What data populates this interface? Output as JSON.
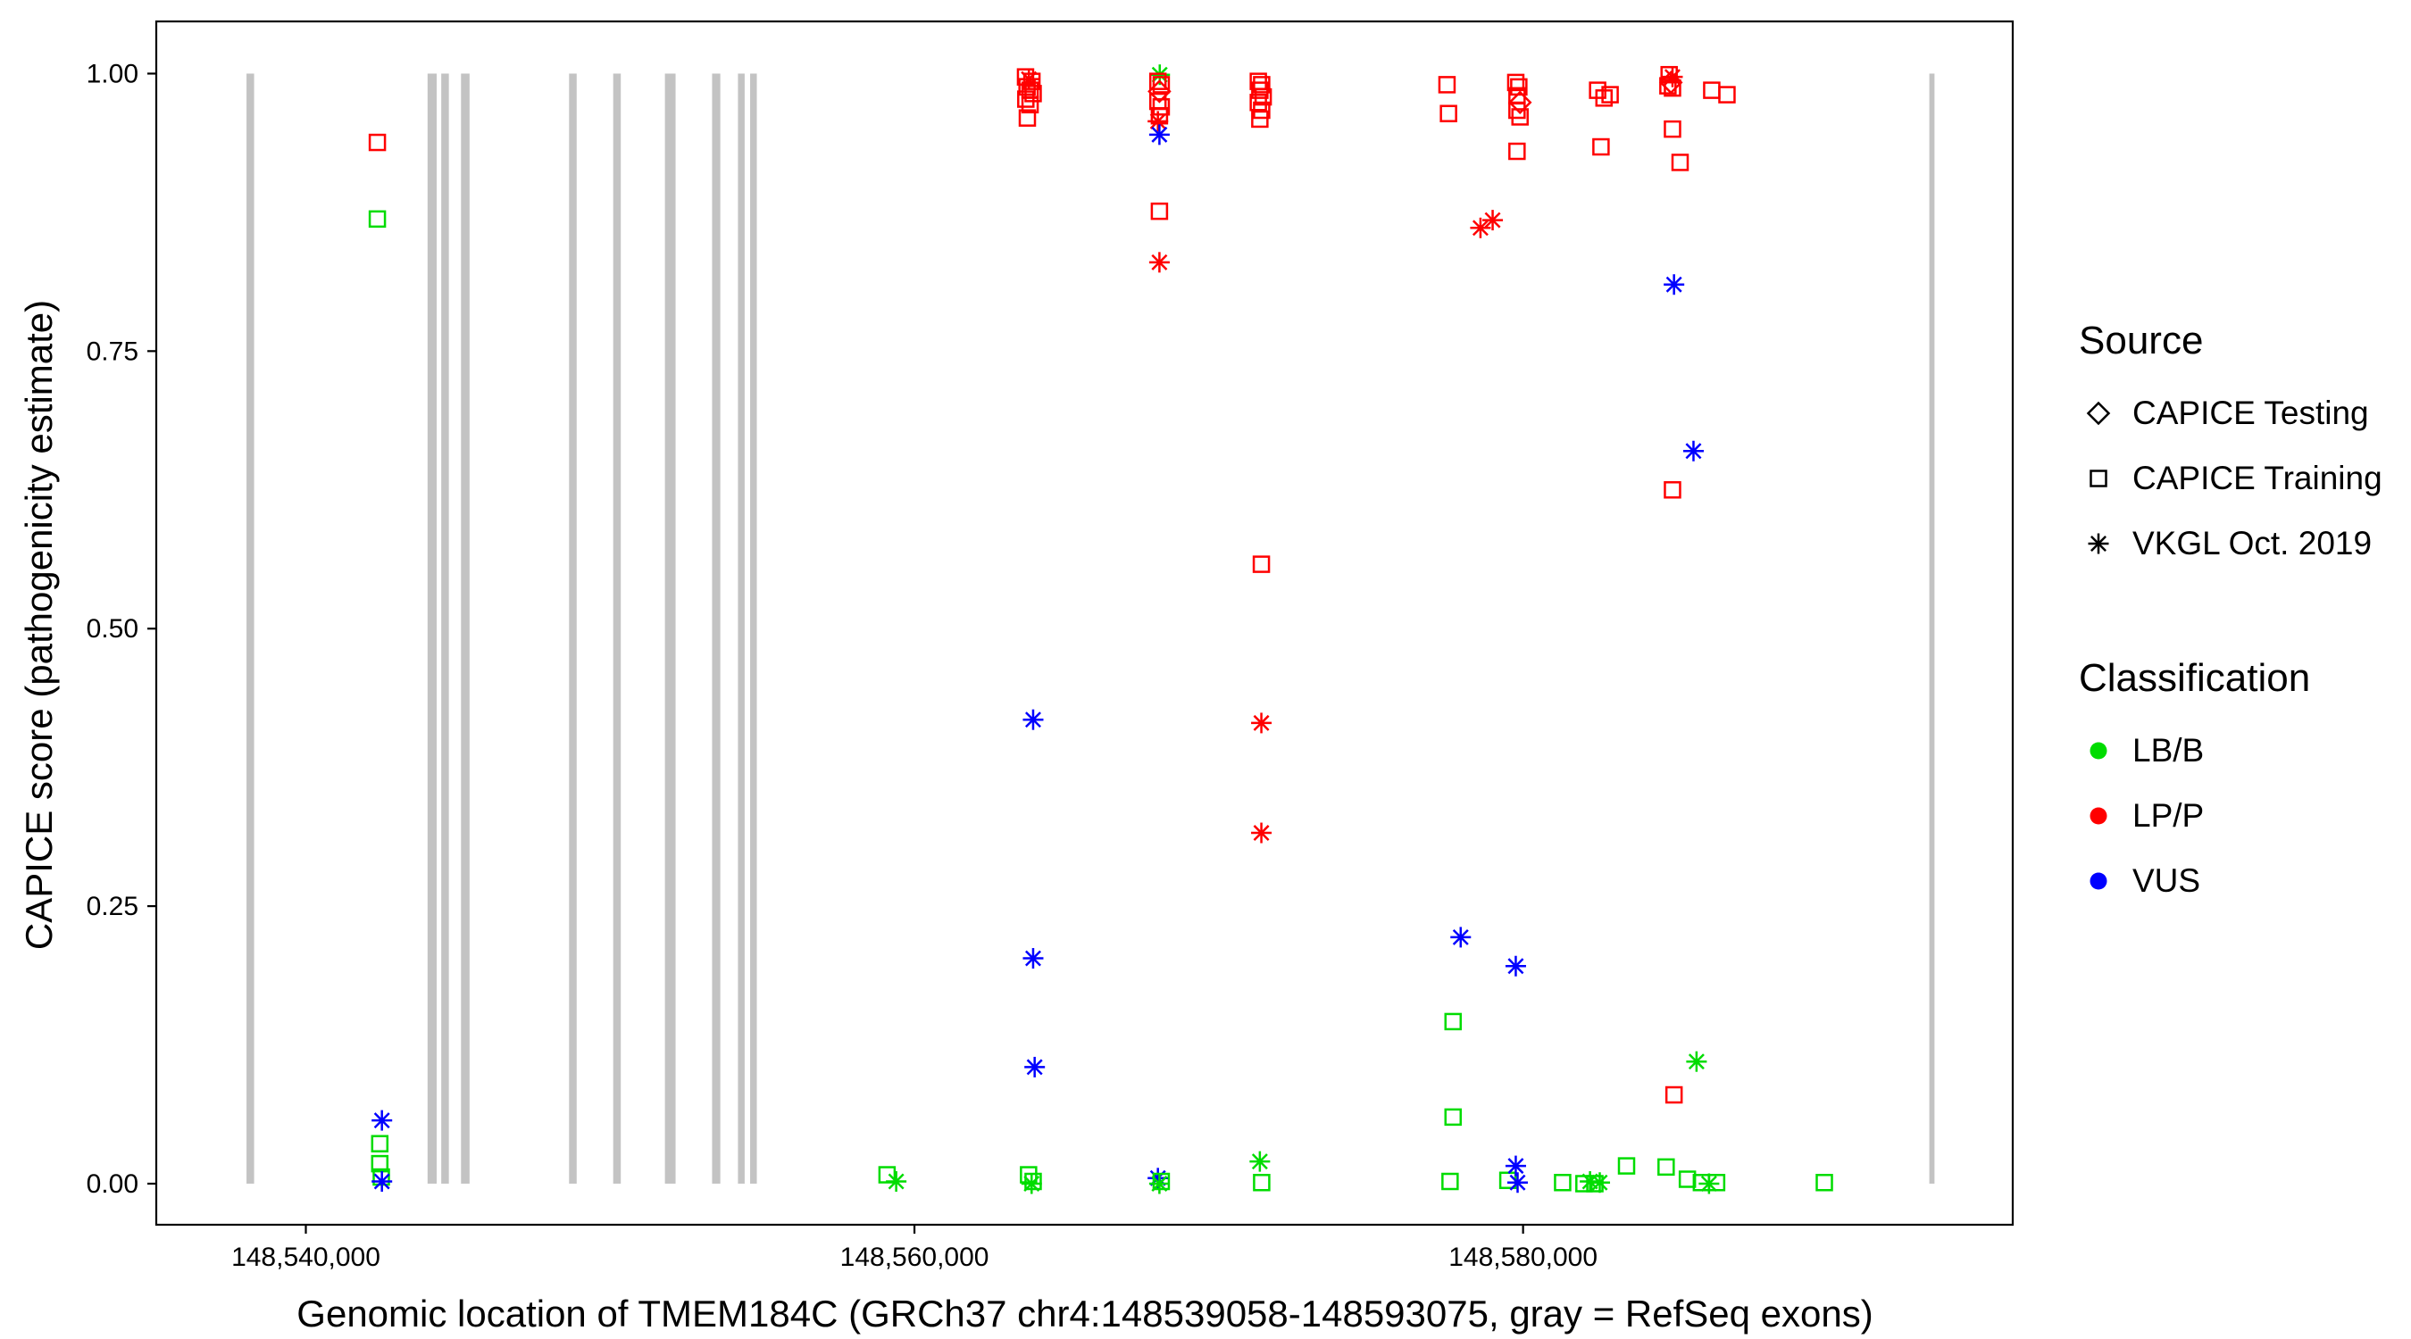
{
  "legend": {
    "source": {
      "title": "Source",
      "items": [
        {
          "label": "CAPICE Testing",
          "shape": "diamond"
        },
        {
          "label": "CAPICE Training",
          "shape": "square"
        },
        {
          "label": "VKGL Oct. 2019",
          "shape": "asterisk"
        }
      ]
    },
    "classification": {
      "title": "Classification",
      "items": [
        {
          "label": "LB/B",
          "class": "LB/B"
        },
        {
          "label": "LP/P",
          "class": "LP/P"
        },
        {
          "label": "VUS",
          "class": "VUS"
        }
      ]
    }
  },
  "chart_data": {
    "type": "scatter",
    "title": "",
    "xlabel": "Genomic location of TMEM184C (GRCh37 chr4:148539058-148593075, gray = RefSeq exons)",
    "ylabel": "CAPICE score (pathogenicity estimate)",
    "x_domain": [
      148535085,
      148596091
    ],
    "y_domain": [
      0,
      1
    ],
    "y_domain_expanded": [
      -0.037,
      1.047
    ],
    "grid": false,
    "x_ticks": [
      {
        "value": 148540000,
        "label": "148,540,000"
      },
      {
        "value": 148560000,
        "label": "148,560,000"
      },
      {
        "value": 148580000,
        "label": "148,580,000"
      }
    ],
    "y_ticks": [
      {
        "value": 0.0,
        "label": "0.00"
      },
      {
        "value": 0.25,
        "label": "0.25"
      },
      {
        "value": 0.5,
        "label": "0.50"
      },
      {
        "value": 0.75,
        "label": "0.75"
      },
      {
        "value": 1.0,
        "label": "1.00"
      }
    ],
    "colors": {
      "LB/B": "#00DC00",
      "LP/P": "#FF0000",
      "VUS": "#0000FF"
    },
    "exon_color": "#C3C3C3",
    "shape_meaning": {
      "diamond": "CAPICE Testing",
      "square": "CAPICE Training",
      "asterisk": "VKGL Oct. 2019"
    },
    "exons": [
      [
        148538050,
        148538300
      ],
      [
        148544000,
        148544300
      ],
      [
        148544450,
        148544700
      ],
      [
        148545100,
        148545380
      ],
      [
        148548650,
        148548900
      ],
      [
        148550100,
        148550350
      ],
      [
        148551800,
        148552150
      ],
      [
        148553350,
        148553620
      ],
      [
        148554200,
        148554420
      ],
      [
        148554600,
        148554820
      ],
      [
        148593350,
        148593520
      ]
    ],
    "point_format": [
      "genomic_position",
      "capice_score",
      "source_shape",
      "classification"
    ],
    "points": [
      [
        148542350,
        0.938,
        "square",
        "LP/P"
      ],
      [
        148542350,
        0.869,
        "square",
        "LB/B"
      ],
      [
        148542500,
        0.057,
        "asterisk",
        "VUS"
      ],
      [
        148542430,
        0.036,
        "square",
        "LB/B"
      ],
      [
        148542430,
        0.018,
        "square",
        "LB/B"
      ],
      [
        148542480,
        0.006,
        "square",
        "LB/B"
      ],
      [
        148542500,
        0.002,
        "asterisk",
        "VUS"
      ],
      [
        148559100,
        0.008,
        "square",
        "LB/B"
      ],
      [
        148559400,
        0.002,
        "asterisk",
        "LB/B"
      ],
      [
        148563650,
        0.997,
        "square",
        "LP/P"
      ],
      [
        148563760,
        0.995,
        "asterisk",
        "LP/P"
      ],
      [
        148563860,
        0.993,
        "square",
        "LP/P"
      ],
      [
        148563700,
        0.988,
        "square",
        "LP/P"
      ],
      [
        148563800,
        0.985,
        "square",
        "LP/P"
      ],
      [
        148563900,
        0.982,
        "square",
        "LP/P"
      ],
      [
        148563660,
        0.977,
        "square",
        "LP/P"
      ],
      [
        148563800,
        0.972,
        "square",
        "LP/P"
      ],
      [
        148563710,
        0.96,
        "square",
        "LP/P"
      ],
      [
        148563900,
        0.418,
        "asterisk",
        "VUS"
      ],
      [
        148563900,
        0.203,
        "asterisk",
        "VUS"
      ],
      [
        148563950,
        0.105,
        "asterisk",
        "VUS"
      ],
      [
        148563750,
        0.008,
        "square",
        "LB/B"
      ],
      [
        148563900,
        0.002,
        "square",
        "LB/B"
      ],
      [
        148563850,
        0.0,
        "asterisk",
        "LB/B"
      ],
      [
        148568060,
        0.999,
        "asterisk",
        "LB/B"
      ],
      [
        148568000,
        0.993,
        "square",
        "LP/P"
      ],
      [
        148568110,
        0.99,
        "square",
        "LP/P"
      ],
      [
        148568050,
        0.984,
        "diamond",
        "LP/P"
      ],
      [
        148568000,
        0.975,
        "square",
        "LP/P"
      ],
      [
        148568110,
        0.97,
        "square",
        "LP/P"
      ],
      [
        148568050,
        0.962,
        "square",
        "LP/P"
      ],
      [
        148568000,
        0.957,
        "asterisk",
        "LP/P"
      ],
      [
        148568050,
        0.945,
        "asterisk",
        "VUS"
      ],
      [
        148568050,
        0.876,
        "square",
        "LP/P"
      ],
      [
        148568050,
        0.83,
        "asterisk",
        "LP/P"
      ],
      [
        148568000,
        0.005,
        "asterisk",
        "VUS"
      ],
      [
        148568110,
        0.002,
        "square",
        "LB/B"
      ],
      [
        148568050,
        0.0,
        "asterisk",
        "LB/B"
      ],
      [
        148571300,
        0.993,
        "square",
        "LP/P"
      ],
      [
        148571410,
        0.99,
        "square",
        "LP/P"
      ],
      [
        148571350,
        0.985,
        "square",
        "LP/P"
      ],
      [
        148571460,
        0.979,
        "square",
        "LP/P"
      ],
      [
        148571300,
        0.974,
        "square",
        "LP/P"
      ],
      [
        148571410,
        0.967,
        "square",
        "LP/P"
      ],
      [
        148571350,
        0.959,
        "square",
        "LP/P"
      ],
      [
        148571400,
        0.558,
        "square",
        "LP/P"
      ],
      [
        148571400,
        0.415,
        "asterisk",
        "LP/P"
      ],
      [
        148571400,
        0.316,
        "asterisk",
        "LP/P"
      ],
      [
        148571350,
        0.02,
        "asterisk",
        "LB/B"
      ],
      [
        148571410,
        0.001,
        "square",
        "LB/B"
      ],
      [
        148577500,
        0.99,
        "square",
        "LP/P"
      ],
      [
        148577550,
        0.964,
        "square",
        "LP/P"
      ],
      [
        148578600,
        0.861,
        "asterisk",
        "LP/P"
      ],
      [
        148579000,
        0.868,
        "asterisk",
        "LP/P"
      ],
      [
        148579760,
        0.992,
        "square",
        "LP/P"
      ],
      [
        148579860,
        0.988,
        "square",
        "LP/P"
      ],
      [
        148579800,
        0.98,
        "square",
        "LP/P"
      ],
      [
        148579900,
        0.974,
        "diamond",
        "LP/P"
      ],
      [
        148579800,
        0.967,
        "square",
        "LP/P"
      ],
      [
        148579900,
        0.961,
        "square",
        "LP/P"
      ],
      [
        148579800,
        0.93,
        "square",
        "LP/P"
      ],
      [
        148577950,
        0.222,
        "asterisk",
        "VUS"
      ],
      [
        148579760,
        0.196,
        "asterisk",
        "VUS"
      ],
      [
        148577700,
        0.146,
        "square",
        "LB/B"
      ],
      [
        148577700,
        0.06,
        "square",
        "LB/B"
      ],
      [
        148577600,
        0.002,
        "square",
        "LB/B"
      ],
      [
        148579500,
        0.003,
        "square",
        "LB/B"
      ],
      [
        148579760,
        0.016,
        "asterisk",
        "VUS"
      ],
      [
        148579820,
        0.001,
        "asterisk",
        "VUS"
      ],
      [
        148581300,
        0.001,
        "square",
        "LB/B"
      ],
      [
        148582000,
        0.0,
        "square",
        "LB/B"
      ],
      [
        148582200,
        0.002,
        "asterisk",
        "LB/B"
      ],
      [
        148582360,
        0.0,
        "square",
        "LB/B"
      ],
      [
        148582520,
        0.001,
        "asterisk",
        "LB/B"
      ],
      [
        148582450,
        0.985,
        "square",
        "LP/P"
      ],
      [
        148582660,
        0.978,
        "square",
        "LP/P"
      ],
      [
        148582860,
        0.981,
        "square",
        "LP/P"
      ],
      [
        148582560,
        0.934,
        "square",
        "LP/P"
      ],
      [
        148583400,
        0.016,
        "square",
        "LB/B"
      ],
      [
        148584800,
        0.999,
        "square",
        "LP/P"
      ],
      [
        148584910,
        0.997,
        "asterisk",
        "LP/P"
      ],
      [
        148584860,
        0.992,
        "diamond",
        "LP/P"
      ],
      [
        148584760,
        0.989,
        "square",
        "LP/P"
      ],
      [
        148584910,
        0.987,
        "square",
        "LP/P"
      ],
      [
        148586200,
        0.985,
        "square",
        "LP/P"
      ],
      [
        148586700,
        0.981,
        "square",
        "LP/P"
      ],
      [
        148584910,
        0.95,
        "square",
        "LP/P"
      ],
      [
        148585160,
        0.92,
        "square",
        "LP/P"
      ],
      [
        148584960,
        0.81,
        "asterisk",
        "VUS"
      ],
      [
        148585600,
        0.66,
        "asterisk",
        "VUS"
      ],
      [
        148584910,
        0.625,
        "square",
        "LP/P"
      ],
      [
        148585700,
        0.11,
        "asterisk",
        "LB/B"
      ],
      [
        148584960,
        0.08,
        "square",
        "LP/P"
      ],
      [
        148584700,
        0.015,
        "square",
        "LB/B"
      ],
      [
        148585400,
        0.004,
        "square",
        "LB/B"
      ],
      [
        148585860,
        0.001,
        "square",
        "LB/B"
      ],
      [
        148586110,
        0.0,
        "asterisk",
        "LB/B"
      ],
      [
        148586360,
        0.001,
        "square",
        "LB/B"
      ],
      [
        148589900,
        0.001,
        "square",
        "LB/B"
      ]
    ]
  }
}
